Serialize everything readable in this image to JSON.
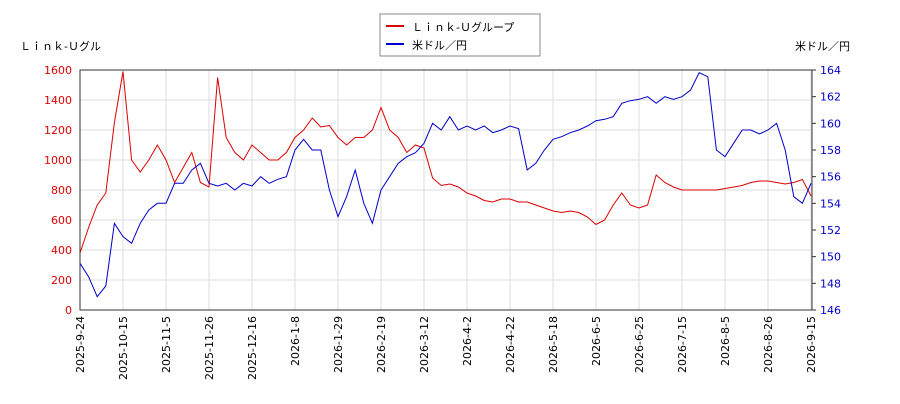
{
  "chart_data": {
    "type": "line",
    "y_label": "Ｌｉｎｋ-Ｕグル",
    "y2_label": "米ドル／円",
    "grid": true,
    "legend": "top",
    "categories": [
      "2025-9-24",
      null,
      null,
      null,
      null,
      "2025-10-15",
      null,
      null,
      null,
      null,
      "2025-11-5",
      null,
      null,
      null,
      null,
      "2025-11-26",
      null,
      null,
      null,
      null,
      "2025-12-16",
      null,
      null,
      null,
      null,
      "2026-1-8",
      null,
      null,
      null,
      null,
      "2026-1-29",
      null,
      null,
      null,
      null,
      "2026-2-19",
      null,
      null,
      null,
      null,
      "2026-3-12",
      null,
      null,
      null,
      null,
      "2026-4-2",
      null,
      null,
      null,
      null,
      "2026-4-22",
      null,
      null,
      null,
      null,
      "2026-5-18",
      null,
      null,
      null,
      null,
      "2026-6-5",
      null,
      null,
      null,
      null,
      "2026-6-25",
      null,
      null,
      null,
      null,
      "2026-7-15",
      null,
      null,
      null,
      null,
      "2026-8-5",
      null,
      null,
      null,
      null,
      "2026-8-26",
      null,
      null,
      null,
      null,
      "2026-9-15"
    ],
    "ylim": [
      0,
      1600
    ],
    "yticks": [
      0,
      200,
      400,
      600,
      800,
      1000,
      1200,
      1400,
      1600
    ],
    "y2lim": [
      146,
      164
    ],
    "y2ticks": [
      146,
      148,
      150,
      152,
      154,
      156,
      158,
      160,
      162,
      164
    ],
    "series": [
      {
        "name": "Ｌｉｎｋ-Ｕグループ",
        "color": "#dd0000",
        "values": [
          380,
          550,
          700,
          780,
          1250,
          1590,
          1000,
          920,
          1000,
          1100,
          1000,
          850,
          950,
          1050,
          850,
          820,
          1550,
          1150,
          1050,
          1000,
          1100,
          1050,
          1000,
          1000,
          1050,
          1150,
          1200,
          1280,
          1220,
          1230,
          1150,
          1100,
          1150,
          1150,
          1200,
          1350,
          1200,
          1150,
          1050,
          1100,
          1080,
          880,
          830,
          840,
          820,
          780,
          760,
          730,
          720,
          740,
          740,
          720,
          720,
          700,
          680,
          660,
          650,
          660,
          650,
          620,
          570,
          600,
          700,
          780,
          700,
          680,
          700,
          900,
          850,
          820,
          800,
          800,
          800,
          800,
          800,
          810,
          820,
          830,
          850,
          860,
          860,
          850,
          840,
          850,
          870,
          760
        ]
      },
      {
        "name": "米ドル／円",
        "color": "#0000cc",
        "axis": "y2",
        "values": [
          149.5,
          148.5,
          147.0,
          147.8,
          152.5,
          151.5,
          151.0,
          152.5,
          153.5,
          154.0,
          154.0,
          155.5,
          155.5,
          156.5,
          157.0,
          155.5,
          155.3,
          155.5,
          155.0,
          155.5,
          155.3,
          156.0,
          155.5,
          155.8,
          156.0,
          158.0,
          158.8,
          158.0,
          158.0,
          155.0,
          153.0,
          154.5,
          156.5,
          154.0,
          152.5,
          155.0,
          156.0,
          157.0,
          157.5,
          157.8,
          158.5,
          160.0,
          159.5,
          160.5,
          159.5,
          159.8,
          159.5,
          159.8,
          159.3,
          159.5,
          159.8,
          159.6,
          156.5,
          157.0,
          158.0,
          158.8,
          159.0,
          159.3,
          159.5,
          159.8,
          160.2,
          160.3,
          160.5,
          161.5,
          161.7,
          161.8,
          162.0,
          161.5,
          162.0,
          161.8,
          162.0,
          162.5,
          163.8,
          163.5,
          158.0,
          157.5,
          158.5,
          159.5,
          159.5,
          159.2,
          159.5,
          160.0,
          158.0,
          154.5,
          154.0,
          155.5
        ]
      }
    ]
  }
}
